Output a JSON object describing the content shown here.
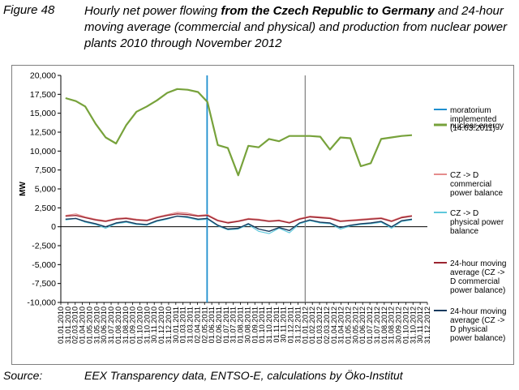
{
  "caption": {
    "label": "Figure 48",
    "title_pre": "Hourly net power flowing ",
    "title_bold": "from the Czech Republic to Germany",
    "title_post": " and 24-hour moving average (commercial and physical) and production from nuclear power plants 2010 through November 2012"
  },
  "source": {
    "label": "Source:",
    "text": "EEX Transparency data, ENTSO-E, calculations by Öko-Institut"
  },
  "colors": {
    "nuclear": "#77a23b",
    "commercial": "#e58c8c",
    "physical": "#5ec8dc",
    "ma_commercial": "#9b2430",
    "ma_physical": "#173a5e",
    "moratorium": "#1f8fcf",
    "year_divider": "#7f7f7f"
  },
  "chart_data": {
    "type": "line",
    "ylabel": "MW",
    "xlabel": "",
    "ylim": [
      -10000,
      20000
    ],
    "y_ticks": [
      -10000,
      -7500,
      -5000,
      -2500,
      0,
      2500,
      5000,
      7500,
      10000,
      12500,
      15000,
      17500,
      20000
    ],
    "y_tick_labels": [
      "-10,000",
      "-7,500",
      "-5,000",
      "-2,500",
      "0",
      "2,500",
      "5,000",
      "7,500",
      "10,000",
      "12,500",
      "15,000",
      "17,500",
      "20,000"
    ],
    "x_tick_labels": [
      "01.01.2010",
      "31.01.2010",
      "02.03.2010",
      "01.04.2010",
      "01.05.2010",
      "31.05.2010",
      "30.06.2010",
      "31.07.2010",
      "01.08.2010",
      "31.08.2010",
      "01.09.2010",
      "01.10.2010",
      "31.10.2010",
      "30.11.2010",
      "01.12.2010",
      "31.12.2010",
      "30.01.2011",
      "01.03.2011",
      "31.03.2011",
      "02.04.2011",
      "02.05.2011",
      "01.06.2011",
      "02.06.2011",
      "01.07.2011",
      "31.07.2011",
      "01.08.2011",
      "30.08.2011",
      "01.09.2011",
      "01.10.2011",
      "31.10.2011",
      "01.11.2011",
      "30.11.2011",
      "01.12.2011",
      "31.12.2011",
      "01.01.2012",
      "01.02.2012",
      "01.03.2012",
      "02.03.2012",
      "01.04.2012",
      "31.04.2012",
      "01.05.2012",
      "30.05.2012",
      "01.06.2012",
      "01.07.2012",
      "31.07.2012",
      "01.08.2012",
      "31.08.2012",
      "30.09.2012",
      "01.10.2012",
      "31.10.2012",
      "30.11.2012",
      "31.12.2012"
    ],
    "moratorium_date": "14.03.2011",
    "year_divider_date": "01.01.2012",
    "legend_position": "right",
    "series": [
      {
        "name": "moratorium implemented (14.03.2011)",
        "kind": "vline"
      },
      {
        "name": "nuclear energy",
        "x": [
          "2010-01",
          "2010-02",
          "2010-03",
          "2010-04",
          "2010-05",
          "2010-06",
          "2010-07",
          "2010-08",
          "2010-09",
          "2010-10",
          "2010-11",
          "2010-12",
          "2011-01",
          "2011-02",
          "2011-03",
          "2011-04",
          "2011-05",
          "2011-06",
          "2011-07",
          "2011-08",
          "2011-09",
          "2011-10",
          "2011-11",
          "2011-12",
          "2012-01",
          "2012-02",
          "2012-03",
          "2012-04",
          "2012-05",
          "2012-06",
          "2012-07",
          "2012-08",
          "2012-09",
          "2012-10",
          "2012-11"
        ],
        "values": [
          17000,
          16600,
          15900,
          13600,
          11800,
          11000,
          13400,
          15200,
          15900,
          16700,
          17700,
          18200,
          18100,
          17800,
          16500,
          10800,
          10400,
          6800,
          10700,
          10500,
          11600,
          11300,
          12000,
          12000,
          12000,
          11900,
          10200,
          11800,
          11700,
          8000,
          8400,
          11600,
          11800,
          12000,
          12100
        ]
      },
      {
        "name": "CZ -> D commercial power balance",
        "x": [
          "2010-01",
          "2010-02",
          "2010-03",
          "2010-04",
          "2010-05",
          "2010-06",
          "2010-07",
          "2010-08",
          "2010-09",
          "2010-10",
          "2010-11",
          "2010-12",
          "2011-01",
          "2011-02",
          "2011-03",
          "2011-04",
          "2011-05",
          "2011-06",
          "2011-07",
          "2011-08",
          "2011-09",
          "2011-10",
          "2011-11",
          "2011-12",
          "2012-01",
          "2012-02",
          "2012-03",
          "2012-04",
          "2012-05",
          "2012-06",
          "2012-07",
          "2012-08",
          "2012-09",
          "2012-10",
          "2012-11"
        ],
        "values": [
          1500,
          1700,
          1300,
          1000,
          800,
          1100,
          1200,
          1000,
          900,
          1300,
          1600,
          1900,
          1800,
          1500,
          1600,
          900,
          600,
          800,
          1100,
          1000,
          800,
          900,
          600,
          1100,
          1400,
          1300,
          1200,
          800,
          900,
          1000,
          1100,
          1200,
          800,
          1300,
          1500
        ]
      },
      {
        "name": "CZ -> D physical power balance",
        "x": [
          "2010-01",
          "2010-02",
          "2010-03",
          "2010-04",
          "2010-05",
          "2010-06",
          "2010-07",
          "2010-08",
          "2010-09",
          "2010-10",
          "2010-11",
          "2010-12",
          "2011-01",
          "2011-02",
          "2011-03",
          "2011-04",
          "2011-05",
          "2011-06",
          "2011-07",
          "2011-08",
          "2011-09",
          "2011-10",
          "2011-11",
          "2011-12",
          "2012-01",
          "2012-02",
          "2012-03",
          "2012-04",
          "2012-05",
          "2012-06",
          "2012-07",
          "2012-08",
          "2012-09",
          "2012-10",
          "2012-11"
        ],
        "values": [
          900,
          1100,
          600,
          300,
          -200,
          400,
          600,
          300,
          200,
          700,
          1000,
          1400,
          1200,
          900,
          1000,
          100,
          -400,
          -300,
          300,
          -600,
          -900,
          -200,
          -800,
          400,
          800,
          500,
          400,
          -300,
          100,
          300,
          400,
          600,
          -200,
          700,
          900
        ]
      },
      {
        "name": "24-hour moving average (CZ -> D commercial power balance)",
        "x": [
          "2010-01",
          "2010-02",
          "2010-03",
          "2010-04",
          "2010-05",
          "2010-06",
          "2010-07",
          "2010-08",
          "2010-09",
          "2010-10",
          "2010-11",
          "2010-12",
          "2011-01",
          "2011-02",
          "2011-03",
          "2011-04",
          "2011-05",
          "2011-06",
          "2011-07",
          "2011-08",
          "2011-09",
          "2011-10",
          "2011-11",
          "2011-12",
          "2012-01",
          "2012-02",
          "2012-03",
          "2012-04",
          "2012-05",
          "2012-06",
          "2012-07",
          "2012-08",
          "2012-09",
          "2012-10",
          "2012-11"
        ],
        "values": [
          1400,
          1500,
          1200,
          900,
          700,
          1000,
          1100,
          900,
          800,
          1200,
          1500,
          1700,
          1600,
          1400,
          1500,
          800,
          500,
          700,
          1000,
          900,
          700,
          800,
          500,
          1000,
          1300,
          1200,
          1100,
          700,
          800,
          900,
          1000,
          1100,
          700,
          1200,
          1400
        ]
      },
      {
        "name": "24-hour moving average (CZ -> D physical power balance)",
        "x": [
          "2010-01",
          "2010-02",
          "2010-03",
          "2010-04",
          "2010-05",
          "2010-06",
          "2010-07",
          "2010-08",
          "2010-09",
          "2010-10",
          "2010-11",
          "2010-12",
          "2011-01",
          "2011-02",
          "2011-03",
          "2011-04",
          "2011-05",
          "2011-06",
          "2011-07",
          "2011-08",
          "2011-09",
          "2011-10",
          "2011-11",
          "2011-12",
          "2012-01",
          "2012-02",
          "2012-03",
          "2012-04",
          "2012-05",
          "2012-06",
          "2012-07",
          "2012-08",
          "2012-09",
          "2012-10",
          "2012-11"
        ],
        "values": [
          1000,
          1100,
          700,
          400,
          0,
          500,
          700,
          400,
          300,
          800,
          1100,
          1400,
          1300,
          1000,
          1100,
          200,
          -300,
          -200,
          400,
          -300,
          -600,
          -100,
          -500,
          500,
          900,
          600,
          500,
          -100,
          200,
          400,
          500,
          700,
          0,
          800,
          1000
        ]
      }
    ]
  }
}
